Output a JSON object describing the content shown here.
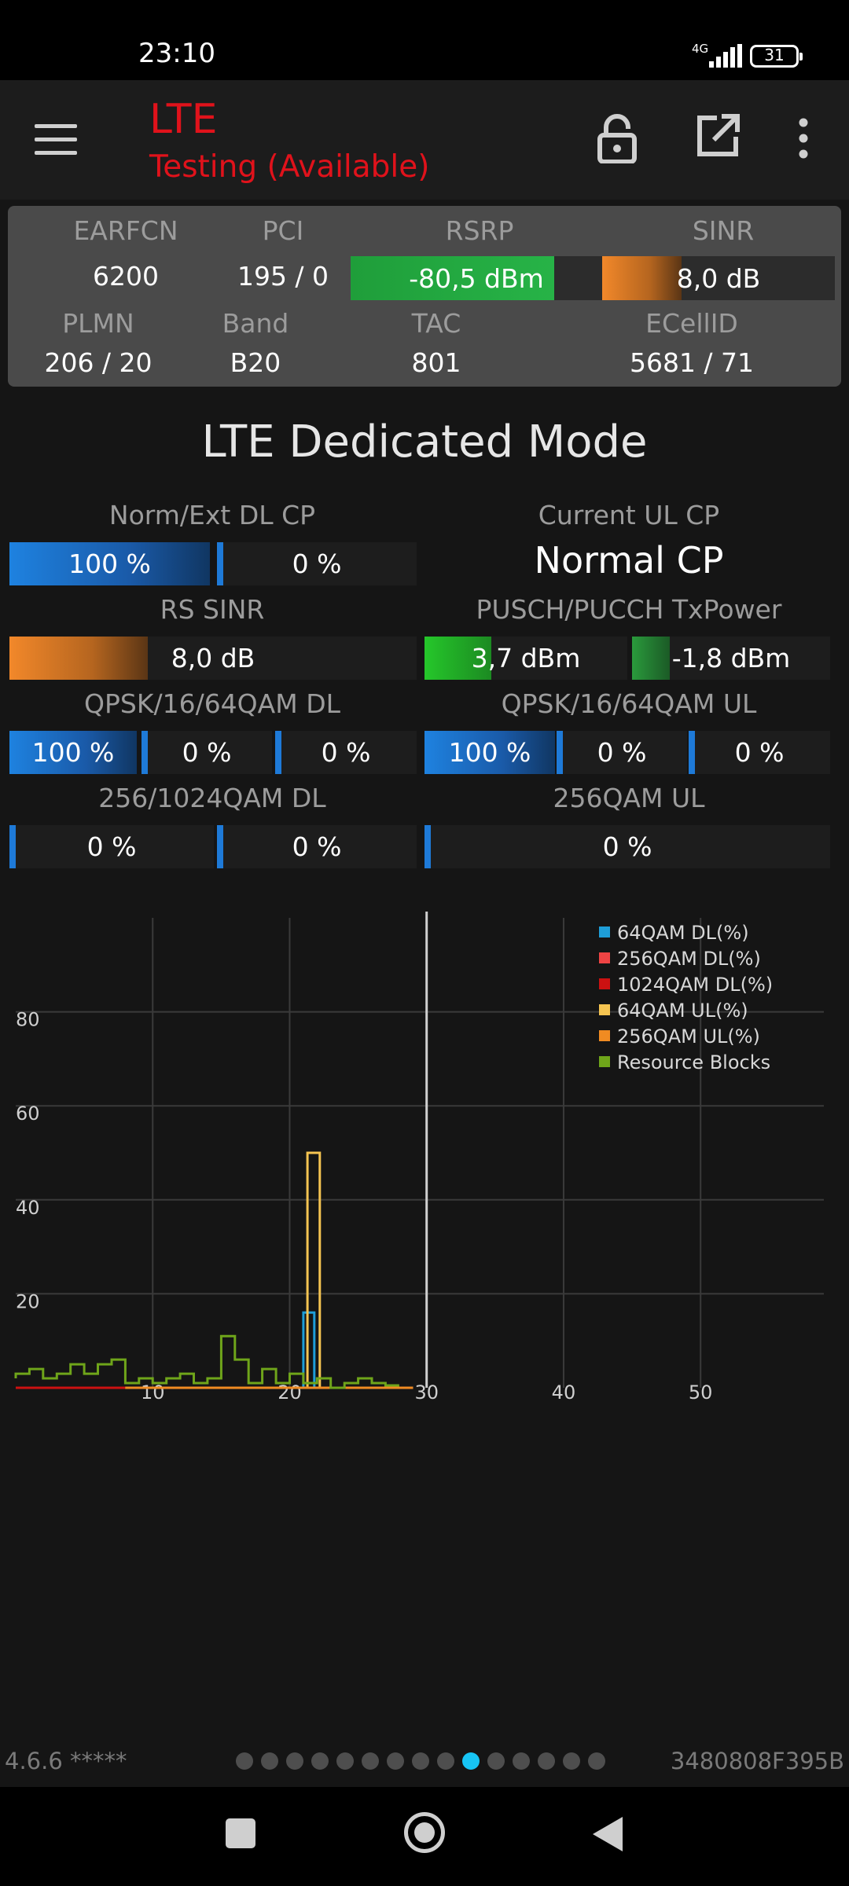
{
  "status_bar": {
    "time": "23:10",
    "network": "4G",
    "battery": "31"
  },
  "app_bar": {
    "title": "LTE",
    "subtitle": "Testing (Available)"
  },
  "info_panel": {
    "earfcn": {
      "label": "EARFCN",
      "value": "6200"
    },
    "pci": {
      "label": "PCI",
      "value": "195 / 0"
    },
    "rsrp": {
      "label": "RSRP",
      "value": "-80,5 dBm",
      "level": 0.81
    },
    "sinr": {
      "label": "SINR",
      "value": "8,0 dB",
      "level": 0.34
    },
    "plmn": {
      "label": "PLMN",
      "value": "206 / 20"
    },
    "band": {
      "label": "Band",
      "value": "B20"
    },
    "tac": {
      "label": "TAC",
      "value": "801"
    },
    "ecellid": {
      "label": "ECellID",
      "value": "5681 / 71"
    }
  },
  "dedicated": {
    "title": "LTE Dedicated Mode",
    "dl_cp": {
      "label": "Norm/Ext DL CP",
      "norm": "100 %",
      "ext": "0 %",
      "norm_level": 1.0,
      "ext_level": 0.0
    },
    "ul_cp": {
      "label": "Current UL CP",
      "value": "Normal CP"
    },
    "rs_sinr": {
      "label": "RS SINR",
      "value": "8,0 dB",
      "level": 0.34
    },
    "tx_power": {
      "label": "PUSCH/PUCCH TxPower",
      "pusch": "3,7 dBm",
      "pucch": "-1,8 dBm",
      "pusch_level": 0.33,
      "pucch_level": 0.19
    },
    "qam_dl": {
      "label": "QPSK/16/64QAM DL",
      "values": [
        "100 %",
        "0 %",
        "0 %"
      ],
      "levels": [
        1.0,
        0.0,
        0.0
      ]
    },
    "qam_ul": {
      "label": "QPSK/16/64QAM UL",
      "values": [
        "100 %",
        "0 %",
        "0 %"
      ],
      "levels": [
        1.0,
        0.0,
        0.0
      ]
    },
    "qam256_dl": {
      "label": "256/1024QAM DL",
      "values": [
        "0 %",
        "0 %"
      ]
    },
    "qam256_ul": {
      "label": "256QAM UL",
      "value": "0 %"
    }
  },
  "chart_data": {
    "type": "line",
    "x_ticks": [
      "10",
      "20",
      "30",
      "40",
      "50"
    ],
    "y_ticks": [
      "20",
      "40",
      "60",
      "80"
    ],
    "xlim": [
      0,
      59
    ],
    "ylim": [
      0,
      100
    ],
    "cursor_x": 30,
    "series": [
      {
        "name": "64QAM DL(%)",
        "color": "#1e9ed8",
        "x": [
          0,
          20.5,
          21,
          21,
          21.8,
          21.8,
          29
        ],
        "y": [
          0,
          0,
          0,
          16,
          16,
          0,
          0
        ]
      },
      {
        "name": "256QAM DL(%)",
        "color": "#ee4444",
        "x": [
          0,
          29
        ],
        "y": [
          0,
          0
        ]
      },
      {
        "name": "1024QAM DL(%)",
        "color": "#cc1111",
        "x": [
          0,
          29
        ],
        "y": [
          0,
          0
        ]
      },
      {
        "name": "64QAM UL(%)",
        "color": "#f5c451",
        "x": [
          8,
          21.3,
          21.3,
          22.2,
          22.2,
          29
        ],
        "y": [
          0,
          0,
          50,
          50,
          0,
          0
        ]
      },
      {
        "name": "256QAM UL(%)",
        "color": "#f08b22",
        "x": [
          8,
          29
        ],
        "y": [
          0,
          0
        ]
      },
      {
        "name": "Resource Blocks",
        "color": "#6fa51a",
        "x": [
          0,
          0,
          1,
          1,
          2,
          2,
          3,
          3,
          4,
          4,
          5,
          5,
          6,
          6,
          7,
          7,
          8,
          8,
          9,
          9,
          10,
          10,
          11,
          11,
          12,
          12,
          13,
          13,
          14,
          14,
          15,
          15,
          16,
          16,
          17,
          17,
          18,
          18,
          19,
          19,
          20,
          20,
          21,
          21,
          22,
          22,
          23,
          23,
          24,
          24,
          25,
          25,
          26,
          26,
          27,
          27,
          28
        ],
        "y": [
          2,
          3,
          3,
          4,
          4,
          2,
          2,
          3,
          3,
          5,
          5,
          3,
          3,
          5,
          5,
          6,
          6,
          1,
          1,
          2,
          2,
          1,
          1,
          2,
          2,
          3,
          3,
          1,
          1,
          2,
          2,
          11,
          11,
          6,
          6,
          1,
          1,
          4,
          4,
          1,
          1,
          3,
          3,
          1,
          1,
          2,
          2,
          0,
          0,
          1,
          1,
          2,
          2,
          1,
          1,
          0.5,
          0.5
        ]
      }
    ]
  },
  "footer": {
    "version": "4.6.6 *****",
    "device_id": "3480808F395B",
    "page_count": 15,
    "active_page": 10
  }
}
